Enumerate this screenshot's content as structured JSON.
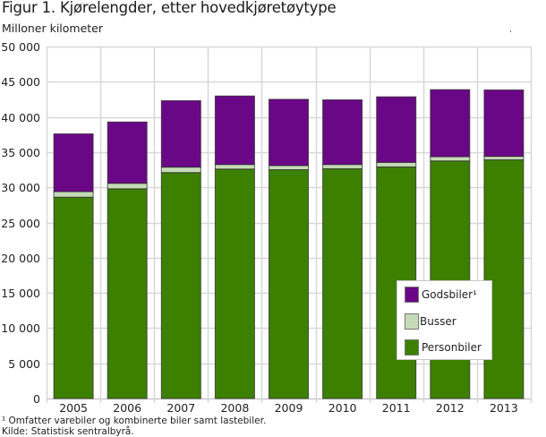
{
  "chart_data": {
    "type": "bar",
    "stacked": true,
    "title": "Figur 1. Kjørelengder, etter hovedkjøretøytype",
    "ylabel": "Milloner kilometer",
    "xlabel": "",
    "ylim": [
      0,
      50000
    ],
    "yticks": [
      0,
      5000,
      10000,
      15000,
      20000,
      25000,
      30000,
      35000,
      40000,
      45000,
      50000
    ],
    "ytick_labels": [
      "0",
      "5 000",
      "10 000",
      "15 000",
      "20 000",
      "25 000",
      "30 000",
      "35 000",
      "40 000",
      "45 000",
      "50 000"
    ],
    "grid": true,
    "categories": [
      "2005",
      "2006",
      "2007",
      "2008",
      "2009",
      "2010",
      "2011",
      "2012",
      "2013"
    ],
    "series": [
      {
        "name": "Personbiler",
        "color": "#3d8000",
        "values": [
          28600,
          29800,
          32100,
          32600,
          32500,
          32650,
          32900,
          33750,
          33900
        ]
      },
      {
        "name": "Busser",
        "color": "#c5dbb8",
        "values": [
          800,
          770,
          770,
          650,
          600,
          600,
          650,
          600,
          500
        ]
      },
      {
        "name": "Godsbiler¹",
        "color": "#6a0787",
        "values": [
          8200,
          8720,
          9440,
          9730,
          9410,
          9180,
          9310,
          9530,
          9440
        ]
      }
    ],
    "legend": {
      "placement": "bottom-right",
      "order": [
        "Godsbiler¹",
        "Busser",
        "Personbiler"
      ]
    },
    "footnote": "¹ Omfatter varebiler og kombinerte biler samt lastebiler.",
    "source": "Kilde: Statistisk sentralbyrå."
  }
}
